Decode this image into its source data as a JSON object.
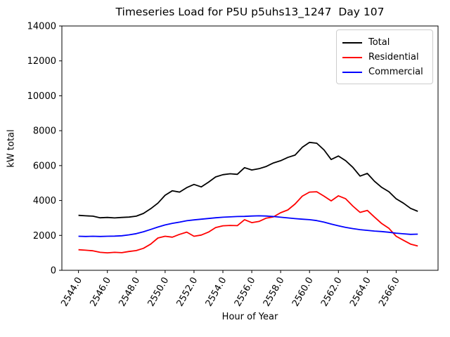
{
  "figure": {
    "title": "Timeseries Load for P5U p5uhs13_1247  Day 107",
    "xlabel": "Hour of Year",
    "ylabel": "kW total"
  },
  "chart_data": {
    "type": "line",
    "title": "Timeseries Load for P5U p5uhs13_1247  Day 107",
    "xlabel": "Hour of Year",
    "ylabel": "kW total",
    "grid": false,
    "legend_position": "upper right",
    "xlim": [
      2542.85,
      2568.9
    ],
    "ylim": [
      0,
      14000
    ],
    "x_ticks": [
      2544.0,
      2546.0,
      2548.0,
      2550.0,
      2552.0,
      2554.0,
      2556.0,
      2558.0,
      2560.0,
      2562.0,
      2564.0,
      2566.0
    ],
    "y_ticks": [
      0,
      2000,
      4000,
      6000,
      8000,
      10000,
      12000,
      14000
    ],
    "x": [
      2544.0,
      2544.5,
      2545.0,
      2545.5,
      2546.0,
      2546.5,
      2547.0,
      2547.5,
      2548.0,
      2548.5,
      2549.0,
      2549.5,
      2550.0,
      2550.5,
      2551.0,
      2551.5,
      2552.0,
      2552.5,
      2553.0,
      2553.5,
      2554.0,
      2554.5,
      2555.0,
      2555.5,
      2556.0,
      2556.5,
      2557.0,
      2557.5,
      2558.0,
      2558.5,
      2559.0,
      2559.5,
      2560.0,
      2560.5,
      2561.0,
      2561.5,
      2562.0,
      2562.5,
      2563.0,
      2563.5,
      2564.0,
      2564.5,
      2565.0,
      2565.5,
      2566.0,
      2566.5,
      2567.0,
      2567.5
    ],
    "series": [
      {
        "name": "Total",
        "color": "#000000",
        "values": [
          3150,
          3120,
          3100,
          3010,
          3030,
          3000,
          3030,
          3050,
          3100,
          3260,
          3530,
          3850,
          4300,
          4560,
          4480,
          4740,
          4920,
          4780,
          5050,
          5350,
          5480,
          5530,
          5500,
          5880,
          5750,
          5820,
          5950,
          6150,
          6280,
          6470,
          6600,
          7050,
          7330,
          7280,
          6900,
          6350,
          6550,
          6280,
          5900,
          5400,
          5550,
          5100,
          4750,
          4500,
          4100,
          3850,
          3550,
          3380
        ]
      },
      {
        "name": "Residential",
        "color": "#ff0000",
        "values": [
          1180,
          1150,
          1120,
          1030,
          1000,
          1030,
          1010,
          1080,
          1130,
          1260,
          1500,
          1850,
          1950,
          1900,
          2060,
          2190,
          1950,
          2020,
          2190,
          2450,
          2550,
          2570,
          2560,
          2900,
          2730,
          2800,
          2990,
          3060,
          3300,
          3460,
          3800,
          4250,
          4480,
          4500,
          4250,
          3980,
          4270,
          4100,
          3680,
          3320,
          3430,
          3050,
          2680,
          2400,
          1950,
          1720,
          1500,
          1390
        ]
      },
      {
        "name": "Commercial",
        "color": "#0000ff",
        "values": [
          1950,
          1940,
          1950,
          1940,
          1950,
          1960,
          1980,
          2030,
          2100,
          2210,
          2340,
          2480,
          2600,
          2690,
          2760,
          2840,
          2890,
          2930,
          2970,
          3010,
          3040,
          3060,
          3080,
          3090,
          3110,
          3120,
          3110,
          3080,
          3040,
          3000,
          2960,
          2930,
          2900,
          2850,
          2760,
          2650,
          2550,
          2460,
          2390,
          2330,
          2290,
          2250,
          2220,
          2180,
          2130,
          2090,
          2060,
          2070
        ]
      }
    ]
  }
}
